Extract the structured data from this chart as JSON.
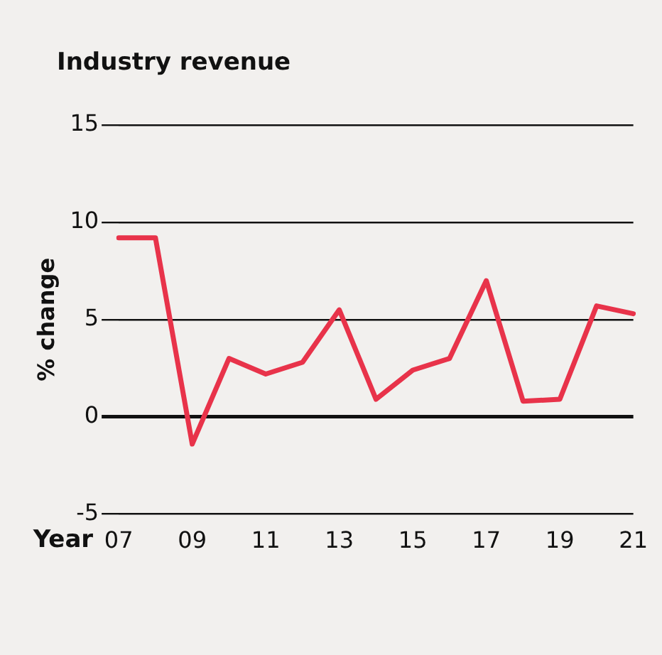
{
  "chart_data": {
    "type": "line",
    "title": "Industry revenue",
    "xlabel": "Year",
    "ylabel": "% change",
    "categories": [
      "07",
      null,
      "09",
      null,
      "11",
      null,
      "13",
      null,
      "15",
      null,
      "17",
      null,
      "19",
      null,
      "21"
    ],
    "series": [
      {
        "color": "#e8334a",
        "values": [
          9.2,
          9.2,
          -1.4,
          3.0,
          2.2,
          2.8,
          5.5,
          0.9,
          2.4,
          3.0,
          7.0,
          0.8,
          0.9,
          5.7,
          5.3
        ]
      }
    ],
    "ylim": [
      -5,
      15
    ],
    "yticks": [
      -5,
      0,
      5,
      10,
      15
    ],
    "grid": "y",
    "legend": false,
    "marker": "none",
    "line_style": "solid"
  }
}
